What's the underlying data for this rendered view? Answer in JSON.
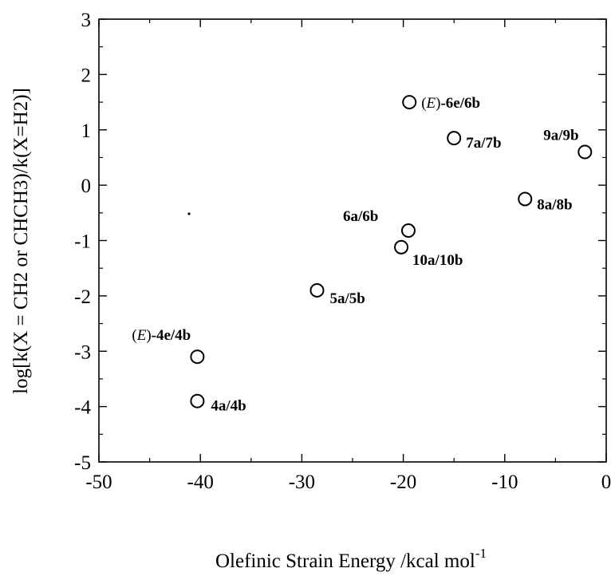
{
  "chart_data": {
    "type": "scatter",
    "title": "",
    "xlabel": "Olefinic Strain Energy /kcal mol",
    "xlabel_sup": "-1",
    "ylabel": "log[k(X = CH2 or CHCH3)/k(X=H2)]",
    "xlim": [
      -50,
      0
    ],
    "ylim": [
      -5,
      3
    ],
    "xticks": [
      -50,
      -40,
      -30,
      -20,
      -10,
      0
    ],
    "yticks": [
      -5,
      -4,
      -3,
      -2,
      -1,
      0,
      1,
      2,
      3
    ],
    "xtick_labels": [
      "-50",
      "-40",
      "-30",
      "-20",
      "-10",
      "0"
    ],
    "ytick_labels": [
      "-5",
      "-4",
      "-3",
      "-2",
      "-1",
      "0",
      "1",
      "2",
      "3"
    ],
    "grid": false,
    "legend": "none",
    "points": [
      {
        "label": "(E)-6e/6b",
        "prefix": "E",
        "base": "-6e/6b",
        "x": -19.4,
        "y": 1.5
      },
      {
        "label": "7a/7b",
        "x": -15.0,
        "y": 0.85
      },
      {
        "label": "9a/9b",
        "x": -2.1,
        "y": 0.6
      },
      {
        "label": "8a/8b",
        "x": -8.0,
        "y": -0.25
      },
      {
        "label": "6a/6b",
        "x": -19.5,
        "y": -0.82
      },
      {
        "label": "10a/10b",
        "x": -20.2,
        "y": -1.12
      },
      {
        "label": "5a/5b",
        "x": -28.5,
        "y": -1.9
      },
      {
        "label": "(E)-4e/4b",
        "prefix": "E",
        "base": "-4e/4b",
        "x": -40.3,
        "y": -3.1
      },
      {
        "label": "4a/4b",
        "x": -40.3,
        "y": -3.9
      }
    ]
  }
}
